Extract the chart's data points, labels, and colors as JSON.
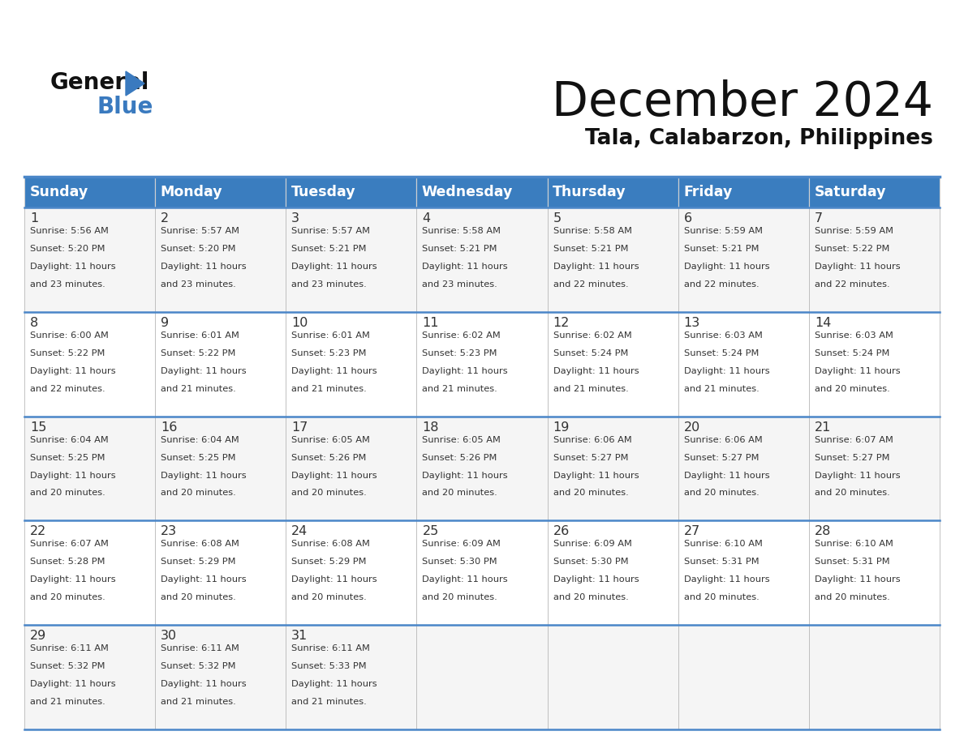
{
  "title": "December 2024",
  "subtitle": "Tala, Calabarzon, Philippines",
  "header_color": "#3a7dbf",
  "header_text_color": "#ffffff",
  "row_colors": [
    "#f5f5f5",
    "#ffffff"
  ],
  "border_color": "#4a86c8",
  "text_color": "#333333",
  "day_headers": [
    "Sunday",
    "Monday",
    "Tuesday",
    "Wednesday",
    "Thursday",
    "Friday",
    "Saturday"
  ],
  "days": [
    {
      "day": 1,
      "col": 0,
      "row": 0,
      "sunrise": "5:56 AM",
      "sunset": "5:20 PM",
      "daylight_hours": 11,
      "daylight_minutes": 23
    },
    {
      "day": 2,
      "col": 1,
      "row": 0,
      "sunrise": "5:57 AM",
      "sunset": "5:20 PM",
      "daylight_hours": 11,
      "daylight_minutes": 23
    },
    {
      "day": 3,
      "col": 2,
      "row": 0,
      "sunrise": "5:57 AM",
      "sunset": "5:21 PM",
      "daylight_hours": 11,
      "daylight_minutes": 23
    },
    {
      "day": 4,
      "col": 3,
      "row": 0,
      "sunrise": "5:58 AM",
      "sunset": "5:21 PM",
      "daylight_hours": 11,
      "daylight_minutes": 23
    },
    {
      "day": 5,
      "col": 4,
      "row": 0,
      "sunrise": "5:58 AM",
      "sunset": "5:21 PM",
      "daylight_hours": 11,
      "daylight_minutes": 22
    },
    {
      "day": 6,
      "col": 5,
      "row": 0,
      "sunrise": "5:59 AM",
      "sunset": "5:21 PM",
      "daylight_hours": 11,
      "daylight_minutes": 22
    },
    {
      "day": 7,
      "col": 6,
      "row": 0,
      "sunrise": "5:59 AM",
      "sunset": "5:22 PM",
      "daylight_hours": 11,
      "daylight_minutes": 22
    },
    {
      "day": 8,
      "col": 0,
      "row": 1,
      "sunrise": "6:00 AM",
      "sunset": "5:22 PM",
      "daylight_hours": 11,
      "daylight_minutes": 22
    },
    {
      "day": 9,
      "col": 1,
      "row": 1,
      "sunrise": "6:01 AM",
      "sunset": "5:22 PM",
      "daylight_hours": 11,
      "daylight_minutes": 21
    },
    {
      "day": 10,
      "col": 2,
      "row": 1,
      "sunrise": "6:01 AM",
      "sunset": "5:23 PM",
      "daylight_hours": 11,
      "daylight_minutes": 21
    },
    {
      "day": 11,
      "col": 3,
      "row": 1,
      "sunrise": "6:02 AM",
      "sunset": "5:23 PM",
      "daylight_hours": 11,
      "daylight_minutes": 21
    },
    {
      "day": 12,
      "col": 4,
      "row": 1,
      "sunrise": "6:02 AM",
      "sunset": "5:24 PM",
      "daylight_hours": 11,
      "daylight_minutes": 21
    },
    {
      "day": 13,
      "col": 5,
      "row": 1,
      "sunrise": "6:03 AM",
      "sunset": "5:24 PM",
      "daylight_hours": 11,
      "daylight_minutes": 21
    },
    {
      "day": 14,
      "col": 6,
      "row": 1,
      "sunrise": "6:03 AM",
      "sunset": "5:24 PM",
      "daylight_hours": 11,
      "daylight_minutes": 20
    },
    {
      "day": 15,
      "col": 0,
      "row": 2,
      "sunrise": "6:04 AM",
      "sunset": "5:25 PM",
      "daylight_hours": 11,
      "daylight_minutes": 20
    },
    {
      "day": 16,
      "col": 1,
      "row": 2,
      "sunrise": "6:04 AM",
      "sunset": "5:25 PM",
      "daylight_hours": 11,
      "daylight_minutes": 20
    },
    {
      "day": 17,
      "col": 2,
      "row": 2,
      "sunrise": "6:05 AM",
      "sunset": "5:26 PM",
      "daylight_hours": 11,
      "daylight_minutes": 20
    },
    {
      "day": 18,
      "col": 3,
      "row": 2,
      "sunrise": "6:05 AM",
      "sunset": "5:26 PM",
      "daylight_hours": 11,
      "daylight_minutes": 20
    },
    {
      "day": 19,
      "col": 4,
      "row": 2,
      "sunrise": "6:06 AM",
      "sunset": "5:27 PM",
      "daylight_hours": 11,
      "daylight_minutes": 20
    },
    {
      "day": 20,
      "col": 5,
      "row": 2,
      "sunrise": "6:06 AM",
      "sunset": "5:27 PM",
      "daylight_hours": 11,
      "daylight_minutes": 20
    },
    {
      "day": 21,
      "col": 6,
      "row": 2,
      "sunrise": "6:07 AM",
      "sunset": "5:27 PM",
      "daylight_hours": 11,
      "daylight_minutes": 20
    },
    {
      "day": 22,
      "col": 0,
      "row": 3,
      "sunrise": "6:07 AM",
      "sunset": "5:28 PM",
      "daylight_hours": 11,
      "daylight_minutes": 20
    },
    {
      "day": 23,
      "col": 1,
      "row": 3,
      "sunrise": "6:08 AM",
      "sunset": "5:29 PM",
      "daylight_hours": 11,
      "daylight_minutes": 20
    },
    {
      "day": 24,
      "col": 2,
      "row": 3,
      "sunrise": "6:08 AM",
      "sunset": "5:29 PM",
      "daylight_hours": 11,
      "daylight_minutes": 20
    },
    {
      "day": 25,
      "col": 3,
      "row": 3,
      "sunrise": "6:09 AM",
      "sunset": "5:30 PM",
      "daylight_hours": 11,
      "daylight_minutes": 20
    },
    {
      "day": 26,
      "col": 4,
      "row": 3,
      "sunrise": "6:09 AM",
      "sunset": "5:30 PM",
      "daylight_hours": 11,
      "daylight_minutes": 20
    },
    {
      "day": 27,
      "col": 5,
      "row": 3,
      "sunrise": "6:10 AM",
      "sunset": "5:31 PM",
      "daylight_hours": 11,
      "daylight_minutes": 20
    },
    {
      "day": 28,
      "col": 6,
      "row": 3,
      "sunrise": "6:10 AM",
      "sunset": "5:31 PM",
      "daylight_hours": 11,
      "daylight_minutes": 20
    },
    {
      "day": 29,
      "col": 0,
      "row": 4,
      "sunrise": "6:11 AM",
      "sunset": "5:32 PM",
      "daylight_hours": 11,
      "daylight_minutes": 21
    },
    {
      "day": 30,
      "col": 1,
      "row": 4,
      "sunrise": "6:11 AM",
      "sunset": "5:32 PM",
      "daylight_hours": 11,
      "daylight_minutes": 21
    },
    {
      "day": 31,
      "col": 2,
      "row": 4,
      "sunrise": "6:11 AM",
      "sunset": "5:33 PM",
      "daylight_hours": 11,
      "daylight_minutes": 21
    }
  ]
}
